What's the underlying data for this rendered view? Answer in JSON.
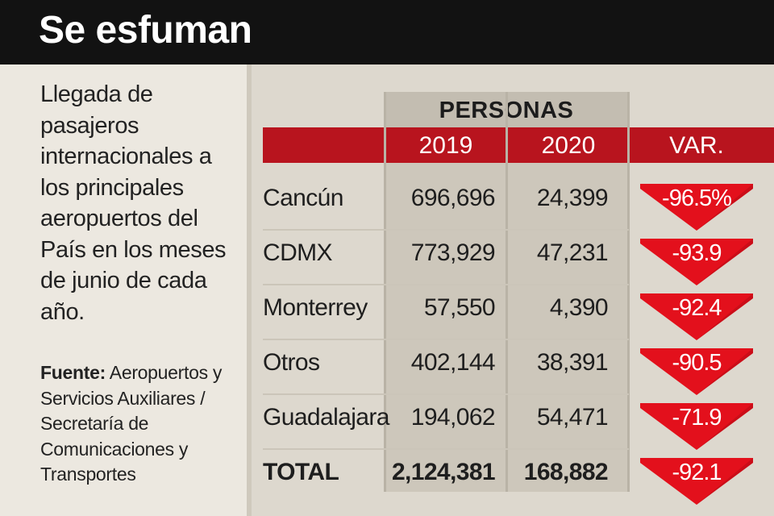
{
  "title": "Se esfuman",
  "description": "Llegada de pasajeros internacionales a los principales aeropuertos del País en los meses de junio de cada año.",
  "source": {
    "label": "Fuente:",
    "text": "Aeropuertos y Servicios Auxiliares / Secretaría de Comunicaciones y Transportes"
  },
  "colors": {
    "red": "#b8141e",
    "arrow": "#e3101c",
    "dark": "#121212"
  },
  "chart_data": {
    "type": "table",
    "group_header": "PERSONAS",
    "columns": [
      "2019",
      "2020",
      "VAR."
    ],
    "rows": [
      {
        "city": "Cancún",
        "y2019": "696,696",
        "y2020": "24,399",
        "var": "-96.5%"
      },
      {
        "city": "CDMX",
        "y2019": "773,929",
        "y2020": "47,231",
        "var": "-93.9"
      },
      {
        "city": "Monterrey",
        "y2019": "57,550",
        "y2020": "4,390",
        "var": "-92.4"
      },
      {
        "city": "Otros",
        "y2019": "402,144",
        "y2020": "38,391",
        "var": "-90.5"
      },
      {
        "city": "Guadalajara",
        "y2019": "194,062",
        "y2020": "54,471",
        "var": "-71.9"
      }
    ],
    "total": {
      "city": "TOTAL",
      "y2019": "2,124,381",
      "y2020": "168,882",
      "var": "-92.1"
    }
  }
}
